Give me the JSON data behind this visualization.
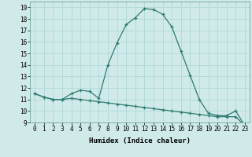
{
  "title": "",
  "xlabel": "Humidex (Indice chaleur)",
  "line1_x": [
    0,
    1,
    2,
    3,
    4,
    5,
    6,
    7,
    8,
    9,
    10,
    11,
    12,
    13,
    14,
    15,
    16,
    17,
    18,
    19,
    20,
    21,
    22,
    23
  ],
  "line1_y": [
    11.5,
    11.2,
    11.0,
    11.0,
    11.5,
    11.8,
    11.7,
    11.1,
    14.0,
    15.9,
    17.5,
    18.1,
    18.9,
    18.8,
    18.4,
    17.3,
    15.2,
    13.1,
    11.0,
    9.8,
    9.6,
    9.6,
    10.0,
    8.7
  ],
  "line2_x": [
    0,
    1,
    2,
    3,
    4,
    5,
    6,
    7,
    8,
    9,
    10,
    11,
    12,
    13,
    14,
    15,
    16,
    17,
    18,
    19,
    20,
    21,
    22,
    23
  ],
  "line2_y": [
    11.5,
    11.2,
    11.0,
    11.0,
    11.1,
    11.0,
    10.9,
    10.8,
    10.7,
    10.6,
    10.5,
    10.4,
    10.3,
    10.2,
    10.1,
    10.0,
    9.9,
    9.8,
    9.7,
    9.6,
    9.5,
    9.5,
    9.5,
    8.7
  ],
  "line_color": "#2e7b6e",
  "bg_color": "#d0eaea",
  "grid_color": "#b0d8d8",
  "ylim": [
    9,
    19.5
  ],
  "xlim": [
    -0.5,
    23.5
  ],
  "yticks": [
    9,
    10,
    11,
    12,
    13,
    14,
    15,
    16,
    17,
    18,
    19
  ],
  "xticks": [
    0,
    1,
    2,
    3,
    4,
    5,
    6,
    7,
    8,
    9,
    10,
    11,
    12,
    13,
    14,
    15,
    16,
    17,
    18,
    19,
    20,
    21,
    22,
    23
  ],
  "xlabel_fontsize": 6.5,
  "tick_fontsize": 5.5
}
